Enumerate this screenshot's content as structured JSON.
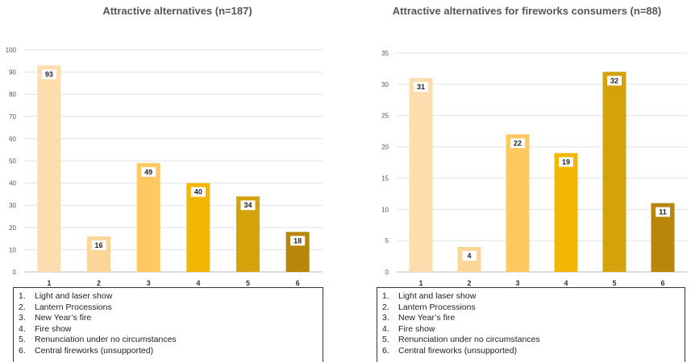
{
  "chart_data": [
    {
      "type": "bar",
      "title": "Attractive alternatives (n=187)",
      "categories": [
        "1",
        "2",
        "3",
        "4",
        "5",
        "6"
      ],
      "values": [
        93,
        16,
        49,
        40,
        34,
        18
      ],
      "ylim": [
        0,
        100
      ],
      "yticks": [
        0,
        10,
        20,
        30,
        40,
        50,
        60,
        70,
        80,
        90,
        100
      ],
      "grid": true,
      "legend": [
        "Light and laser show",
        "Lantern Processions",
        "New Year’s fire",
        "Fire show",
        "Renunciation under no circumstances",
        "Central fireworks (unsupported)"
      ]
    },
    {
      "type": "bar",
      "title": "Attractive alternatives for fireworks consumers (n=88)",
      "categories": [
        "1",
        "2",
        "3",
        "4",
        "5",
        "6"
      ],
      "values": [
        31,
        4,
        22,
        19,
        32,
        11
      ],
      "ylim": [
        0,
        35
      ],
      "yticks": [
        0,
        5,
        10,
        15,
        20,
        25,
        30,
        35
      ],
      "grid": true,
      "legend": [
        "Light and laser show",
        "Lantern Processions",
        "New Year’s fire",
        "Fire show",
        "Renunciation under no circumstances",
        "Central fireworks (unsupported)"
      ]
    }
  ],
  "colors": [
    "#FDDCAE",
    "#FCD598",
    "#FFC962",
    "#F2B705",
    "#D4A20A",
    "#B8860B"
  ]
}
